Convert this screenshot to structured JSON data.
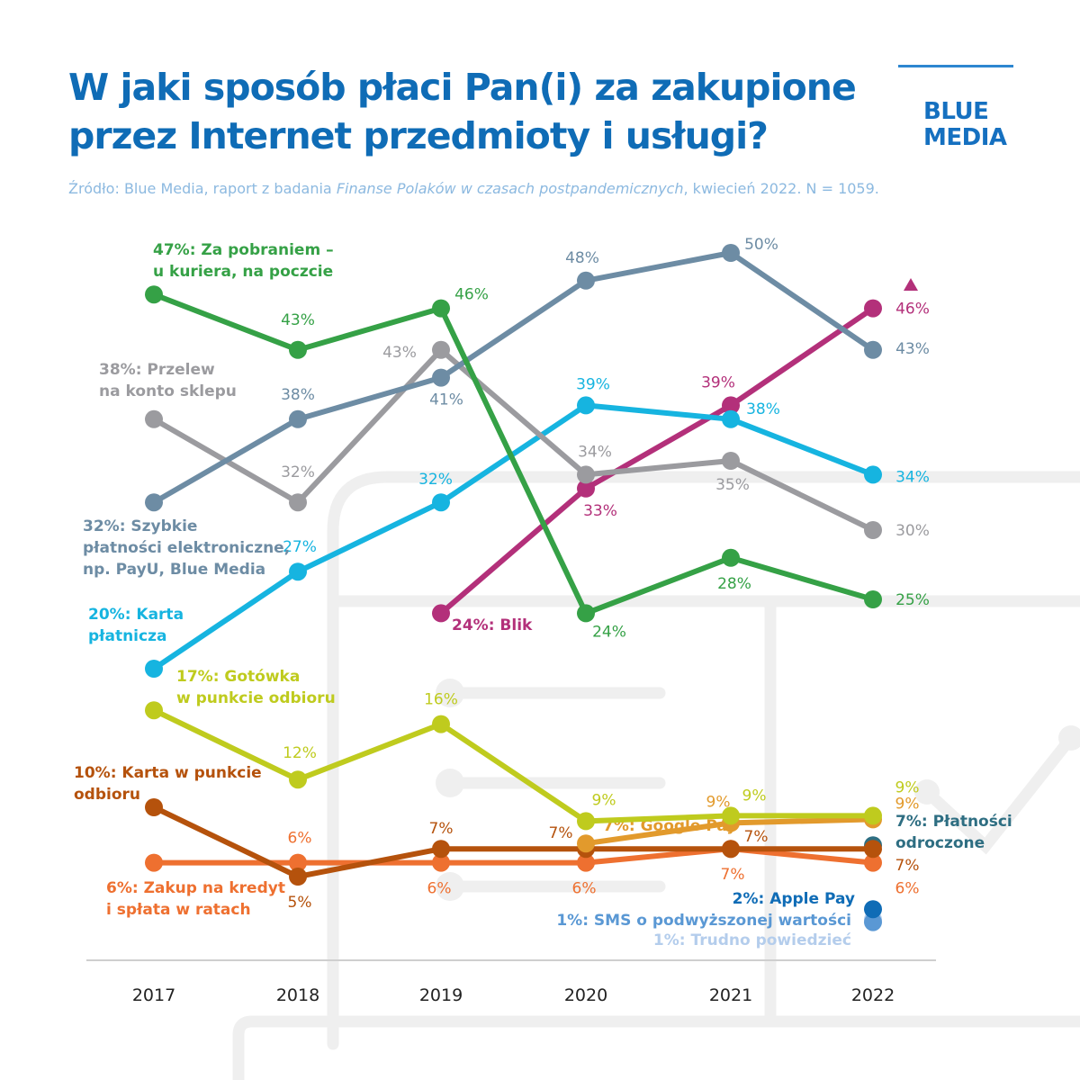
{
  "header": {
    "title_line1": "W jaki sposób płaci Pan(i) za zakupione",
    "title_line2": "przez Internet przedmioty i usługi?",
    "source_prefix": "Źródło: Blue Media, raport z badania ",
    "source_italic": "Finanse Polaków w czasach postpandemicznych",
    "source_suffix": ", kwiecień 2022. N = 1059.",
    "logo_line1": "BLUE",
    "logo_line2": "MEDIA"
  },
  "chart_data": {
    "type": "line",
    "title": "W jaki sposób płaci Pan(i) za zakupione przez Internet przedmioty i usługi?",
    "xlabel": "",
    "ylabel": "",
    "x": [
      "2017",
      "2018",
      "2019",
      "2020",
      "2021",
      "2022"
    ],
    "ylim": [
      0,
      52
    ],
    "grid": false,
    "legend": "inline-labels",
    "series": [
      {
        "name": "Za pobraniem – u kuriera, na poczcie",
        "color": "#35a146",
        "start_label": [
          "47%: Za pobraniem –",
          "u kuriera, na poczcie"
        ],
        "values": [
          47,
          43,
          46,
          24,
          28,
          25
        ],
        "labels": [
          "",
          "43%",
          "46%",
          "24%",
          "28%",
          "25%"
        ]
      },
      {
        "name": "Szybkie płatności elektroniczne, np. PayU, Blue Media",
        "color": "#6d8ca4",
        "start_label": [
          "32%: Szybkie",
          "płatności elektroniczne,",
          "np. PayU, Blue Media"
        ],
        "values": [
          32,
          38,
          41,
          48,
          50,
          43
        ],
        "labels": [
          "",
          "38%",
          "41%",
          "48%",
          "50%",
          "43%"
        ]
      },
      {
        "name": "Przelew na konto sklepu",
        "color": "#9b9b9f",
        "start_label": [
          "38%: Przelew",
          "na konto sklepu"
        ],
        "values": [
          38,
          32,
          43,
          34,
          35,
          30
        ],
        "labels": [
          "",
          "32%",
          "43%",
          "34%",
          "35%",
          "30%"
        ]
      },
      {
        "name": "Karta płatnicza",
        "color": "#16b4e0",
        "start_label": [
          "20%: Karta",
          "płatnicza"
        ],
        "values": [
          20,
          27,
          32,
          39,
          38,
          34
        ],
        "labels": [
          "",
          "27%",
          "32%",
          "39%",
          "38%",
          "34%"
        ]
      },
      {
        "name": "Blik",
        "color": "#b3307a",
        "start_label": [
          "24%: Blik"
        ],
        "values": [
          null,
          null,
          24,
          33,
          39,
          46
        ],
        "labels": [
          "",
          "",
          "",
          "33%",
          "39%",
          "46%"
        ],
        "trend_marker": "up-triangle"
      },
      {
        "name": "Gotówka w punkcie odbioru",
        "color": "#bfcb1e",
        "start_label": [
          "17%: Gotówka",
          "w punkcie odbioru"
        ],
        "values": [
          17,
          12,
          16,
          9,
          9,
          9
        ],
        "labels": [
          "",
          "12%",
          "16%",
          "9%",
          "9%",
          "9%"
        ]
      },
      {
        "name": "Karta w punkcie odbioru",
        "color": "#b5520c",
        "start_label": [
          "10%: Karta w punkcie",
          "odbioru"
        ],
        "values": [
          10,
          5,
          7,
          7,
          7,
          7
        ],
        "labels": [
          "",
          "5%",
          "7%",
          "7%",
          "7%",
          "7%"
        ]
      },
      {
        "name": "Zakup na kredyt i spłata w ratach",
        "color": "#ee7030",
        "start_label": [
          "6%: Zakup na kredyt",
          "i spłata w ratach"
        ],
        "values": [
          6,
          6,
          6,
          6,
          7,
          6
        ],
        "labels": [
          "",
          "6%",
          "6%",
          "6%",
          "7%",
          "6%"
        ]
      },
      {
        "name": "Google Pay",
        "color": "#e29a2c",
        "start_label": [
          "7%: Google Pay"
        ],
        "values": [
          null,
          null,
          null,
          7,
          9,
          9
        ],
        "labels": [
          "",
          "",
          "",
          "",
          "9%",
          "9%"
        ]
      },
      {
        "name": "Płatności odroczone",
        "color": "#2e6e82",
        "start_label": [
          "7%: Płatności",
          "odroczone"
        ],
        "values": [
          null,
          null,
          null,
          null,
          null,
          7
        ],
        "labels": [
          "",
          "",
          "",
          "",
          "",
          ""
        ]
      },
      {
        "name": "Apple Pay",
        "color": "#0f6cb6",
        "start_label": [
          "2%: Apple Pay"
        ],
        "values": [
          null,
          null,
          null,
          null,
          null,
          2
        ],
        "labels": [
          "",
          "",
          "",
          "",
          "",
          ""
        ]
      },
      {
        "name": "SMS o podwyższonej wartości",
        "color": "#5a98d4",
        "start_label": [
          "1%: SMS o podwyższonej wartości"
        ],
        "values": [
          null,
          null,
          null,
          null,
          null,
          1
        ],
        "labels": [
          "",
          "",
          "",
          "",
          "",
          ""
        ]
      },
      {
        "name": "Trudno powiedzieć",
        "color": "#b4cdec",
        "start_label": [
          "1%: Trudno powiedzieć"
        ],
        "values": [
          null,
          null,
          null,
          null,
          null,
          1
        ],
        "labels": [
          "",
          "",
          "",
          "",
          "",
          ""
        ]
      }
    ]
  }
}
